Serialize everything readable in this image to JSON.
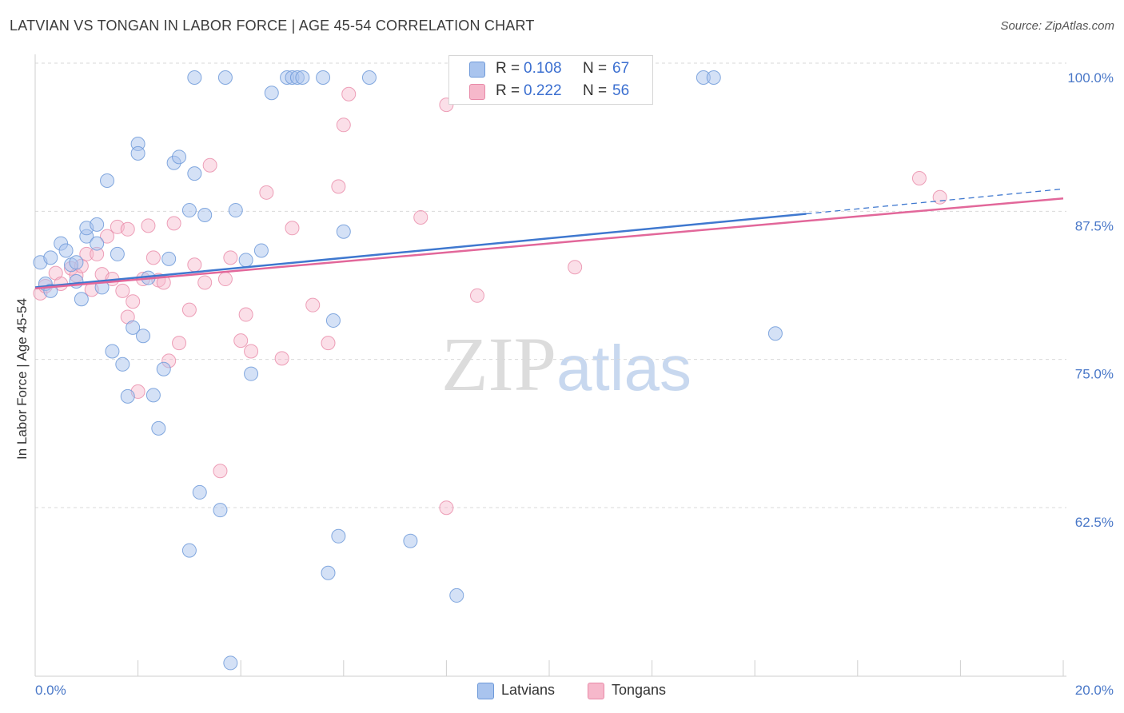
{
  "header": {
    "title": "LATVIAN VS TONGAN IN LABOR FORCE | AGE 45-54 CORRELATION CHART",
    "source": "Source: ZipAtlas.com"
  },
  "legend": {
    "latvians": {
      "r_label": "R =",
      "r_value": "0.108",
      "n_label": "N =",
      "n_value": "67",
      "name": "Latvians"
    },
    "tongans": {
      "r_label": "R =",
      "r_value": "0.222",
      "n_label": "N =",
      "n_value": "56",
      "name": "Tongans"
    }
  },
  "watermark": {
    "zip": "ZIP",
    "atlas": "atlas"
  },
  "colors": {
    "latvian_fill": "#a9c4ee",
    "latvian_stroke": "#6f9ad9",
    "latvian_line": "#3f78cf",
    "tongan_fill": "#f6b8cb",
    "tongan_stroke": "#e88aa8",
    "tongan_line": "#e2679a",
    "axis_text": "#4a78c8",
    "grid": "#d9d9d9"
  },
  "chart_data": {
    "type": "scatter",
    "title": "LATVIAN VS TONGAN IN LABOR FORCE | AGE 45-54 CORRELATION CHART",
    "xlabel": "",
    "ylabel": "In Labor Force | Age 45-54",
    "xlim": [
      0,
      20
    ],
    "ylim": [
      50.5,
      102
    ],
    "x_tick_labels": [
      "0.0%",
      "20.0%"
    ],
    "y_ticks": [
      62.5,
      75.0,
      87.5,
      100.0
    ],
    "y_tick_labels": [
      "62.5%",
      "75.0%",
      "87.5%",
      "100.0%"
    ],
    "grid": true,
    "legend_position": "top-center",
    "series": [
      {
        "name": "Latvians",
        "r": 0.108,
        "n": 67,
        "trend": {
          "x_start": 0.0,
          "y_start": 82.3,
          "x_solid_end": 15.0,
          "y_solid_end": 88.5,
          "x_end": 20.0,
          "y_end": 90.6
        },
        "points": [
          [
            0.1,
            84.4
          ],
          [
            0.2,
            82.6
          ],
          [
            0.3,
            84.8
          ],
          [
            0.5,
            86.0
          ],
          [
            0.6,
            85.4
          ],
          [
            0.7,
            84.2
          ],
          [
            0.8,
            84.4
          ],
          [
            0.8,
            82.8
          ],
          [
            0.9,
            81.3
          ],
          [
            1.0,
            86.6
          ],
          [
            1.0,
            87.3
          ],
          [
            1.2,
            87.6
          ],
          [
            1.2,
            86.0
          ],
          [
            1.3,
            82.3
          ],
          [
            1.4,
            91.3
          ],
          [
            1.5,
            76.9
          ],
          [
            1.6,
            85.1
          ],
          [
            1.7,
            75.8
          ],
          [
            1.8,
            73.1
          ],
          [
            1.9,
            78.9
          ],
          [
            2.0,
            94.4
          ],
          [
            2.0,
            93.6
          ],
          [
            2.1,
            78.2
          ],
          [
            2.2,
            83.1
          ],
          [
            2.3,
            73.2
          ],
          [
            2.4,
            70.4
          ],
          [
            2.5,
            75.4
          ],
          [
            2.6,
            84.7
          ],
          [
            2.7,
            92.8
          ],
          [
            2.8,
            93.3
          ],
          [
            3.0,
            88.8
          ],
          [
            3.0,
            60.1
          ],
          [
            3.1,
            91.9
          ],
          [
            3.1,
            100.0
          ],
          [
            3.2,
            65.0
          ],
          [
            3.3,
            88.4
          ],
          [
            3.6,
            63.5
          ],
          [
            3.7,
            100.0
          ],
          [
            3.8,
            50.6
          ],
          [
            3.9,
            88.8
          ],
          [
            4.1,
            84.6
          ],
          [
            4.2,
            75.0
          ],
          [
            4.4,
            85.4
          ],
          [
            4.6,
            98.7
          ],
          [
            4.9,
            100.0
          ],
          [
            5.0,
            100.0
          ],
          [
            5.1,
            100.0
          ],
          [
            5.2,
            100.0
          ],
          [
            5.6,
            100.0
          ],
          [
            5.7,
            58.2
          ],
          [
            5.8,
            79.5
          ],
          [
            5.9,
            61.3
          ],
          [
            6.0,
            87.0
          ],
          [
            6.5,
            100.0
          ],
          [
            7.3,
            60.9
          ],
          [
            8.2,
            56.3
          ],
          [
            13.0,
            100.0
          ],
          [
            13.2,
            100.0
          ],
          [
            14.4,
            78.4
          ],
          [
            0.3,
            82.0
          ]
        ]
      },
      {
        "name": "Tongans",
        "r": 0.222,
        "n": 56,
        "trend": {
          "x_start": 0.0,
          "y_start": 82.2,
          "x_end": 20.0,
          "y_end": 89.8
        },
        "points": [
          [
            0.1,
            81.8
          ],
          [
            0.2,
            82.4
          ],
          [
            0.4,
            83.5
          ],
          [
            0.5,
            82.6
          ],
          [
            0.7,
            83.9
          ],
          [
            0.8,
            83.3
          ],
          [
            0.9,
            84.1
          ],
          [
            1.0,
            85.1
          ],
          [
            1.1,
            82.1
          ],
          [
            1.2,
            85.1
          ],
          [
            1.3,
            83.4
          ],
          [
            1.4,
            86.6
          ],
          [
            1.5,
            83.0
          ],
          [
            1.6,
            87.4
          ],
          [
            1.7,
            82.0
          ],
          [
            1.8,
            87.2
          ],
          [
            1.8,
            79.8
          ],
          [
            1.9,
            81.1
          ],
          [
            2.0,
            73.5
          ],
          [
            2.1,
            83.0
          ],
          [
            2.2,
            87.5
          ],
          [
            2.3,
            84.8
          ],
          [
            2.4,
            82.9
          ],
          [
            2.5,
            82.7
          ],
          [
            2.6,
            76.1
          ],
          [
            2.7,
            87.7
          ],
          [
            2.8,
            77.6
          ],
          [
            3.0,
            80.4
          ],
          [
            3.1,
            84.2
          ],
          [
            3.3,
            82.7
          ],
          [
            3.4,
            92.6
          ],
          [
            3.6,
            66.8
          ],
          [
            3.7,
            83.0
          ],
          [
            3.8,
            84.8
          ],
          [
            4.0,
            77.8
          ],
          [
            4.1,
            80.0
          ],
          [
            4.2,
            76.9
          ],
          [
            4.5,
            90.3
          ],
          [
            4.8,
            76.3
          ],
          [
            5.0,
            87.3
          ],
          [
            5.4,
            80.8
          ],
          [
            5.7,
            77.6
          ],
          [
            5.9,
            90.8
          ],
          [
            6.0,
            96.0
          ],
          [
            6.1,
            98.6
          ],
          [
            7.5,
            88.2
          ],
          [
            8.0,
            97.7
          ],
          [
            8.0,
            63.7
          ],
          [
            8.6,
            81.6
          ],
          [
            10.5,
            84.0
          ],
          [
            17.2,
            91.5
          ],
          [
            17.6,
            89.9
          ]
        ]
      }
    ]
  }
}
